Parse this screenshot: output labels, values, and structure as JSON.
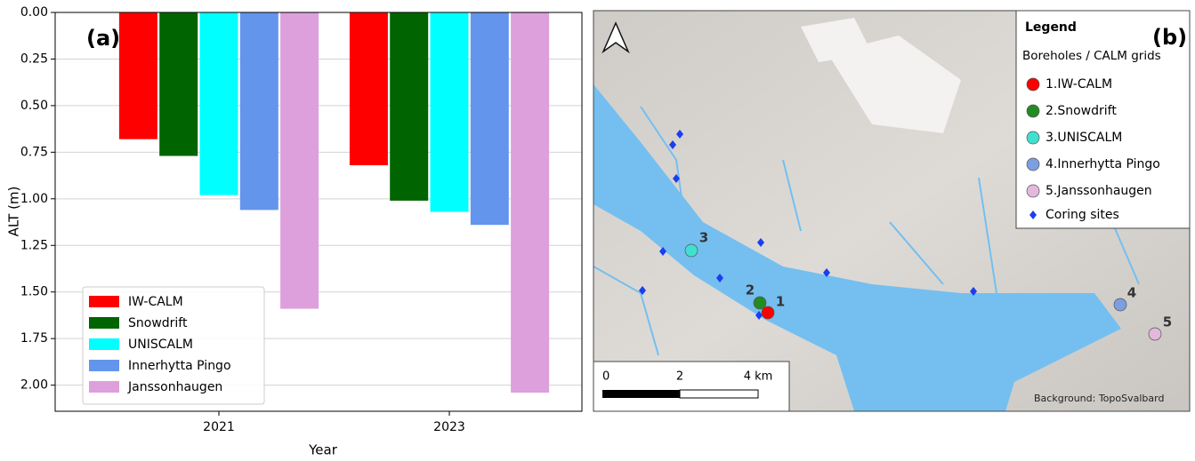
{
  "chart_data": {
    "type": "bar",
    "annotation": "(a)",
    "xlabel": "Year",
    "ylabel": "ALT (m)",
    "categories": [
      "2021",
      "2023"
    ],
    "series": [
      {
        "name": "IW-CALM",
        "color": "#ff0000",
        "values": [
          0.68,
          0.82
        ]
      },
      {
        "name": "Snowdrift",
        "color": "#006400",
        "values": [
          0.77,
          1.01
        ]
      },
      {
        "name": "UNISCALM",
        "color": "#00ffff",
        "values": [
          0.98,
          1.07
        ]
      },
      {
        "name": "Innerhytta Pingo",
        "color": "#6495ed",
        "values": [
          1.06,
          1.14
        ]
      },
      {
        "name": "Janssonhaugen",
        "color": "#dda0dd",
        "values": [
          1.59,
          2.04
        ]
      }
    ],
    "ylim": [
      0,
      2.14
    ],
    "y_inverted": true,
    "yticks": [
      {
        "value": 0,
        "label": "0.00"
      },
      {
        "value": 0.25,
        "label": "0.25"
      },
      {
        "value": 0.5,
        "label": "0.50"
      },
      {
        "value": 0.75,
        "label": "0.75"
      },
      {
        "value": 1,
        "label": "1.00"
      },
      {
        "value": 1.25,
        "label": "1.25"
      },
      {
        "value": 1.5,
        "label": "1.50"
      },
      {
        "value": 1.75,
        "label": "1.75"
      },
      {
        "value": 2,
        "label": "2.00"
      }
    ],
    "grid": true,
    "legend": "lower left"
  },
  "map": {
    "annotation": "(b)",
    "legend": {
      "title": "Legend",
      "subtitle": "Boreholes / CALM grids",
      "items": [
        {
          "label": "1.IW-CALM",
          "color": "#ff0000"
        },
        {
          "label": "2.Snowdrift",
          "color": "#228b22"
        },
        {
          "label": "3.UNISCALM",
          "color": "#40e0d0"
        },
        {
          "label": "4.Innerhytta Pingo",
          "color": "#7b9fe0"
        },
        {
          "label": "5.Janssonhaugen",
          "color": "#e4b8dc"
        }
      ],
      "coring": "Coring sites"
    },
    "site_labels": [
      "1",
      "2",
      "3",
      "4",
      "5"
    ],
    "scale": [
      "0",
      "2",
      "4 km"
    ],
    "credit": "Background: TopoSvalbard"
  }
}
